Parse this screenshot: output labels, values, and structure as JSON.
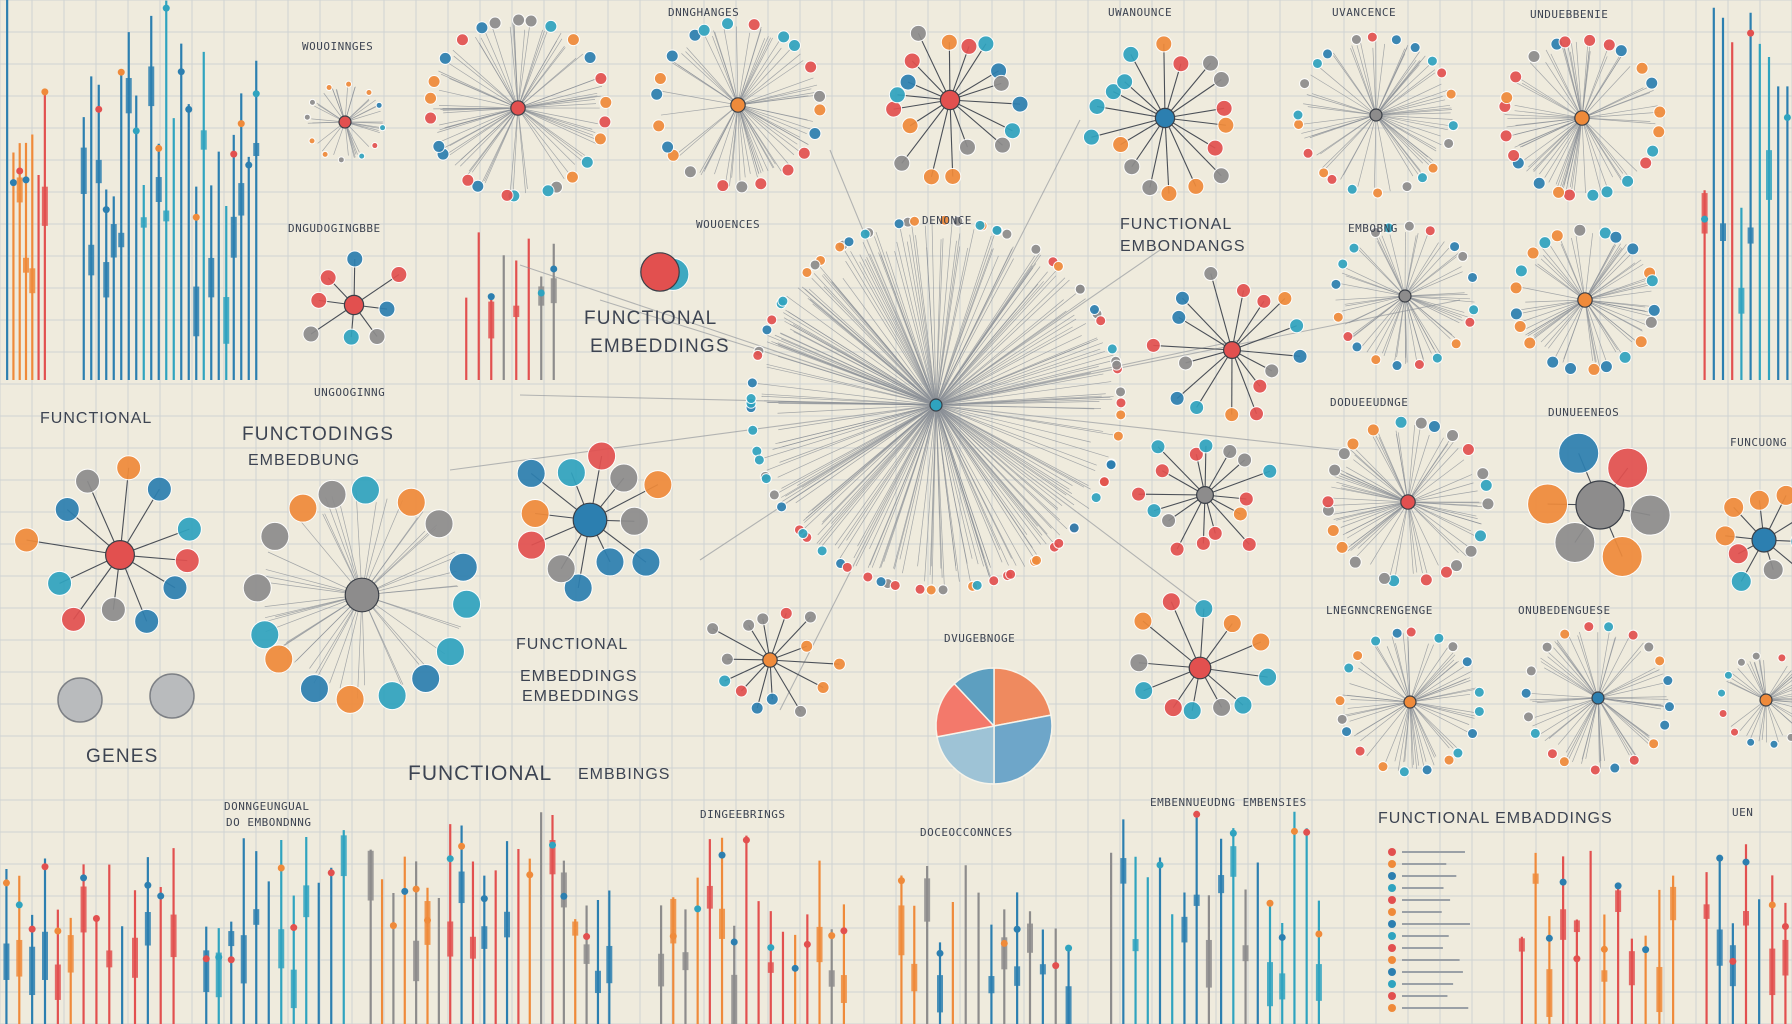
{
  "colors": {
    "background": "#efebdd",
    "grid": "#cfd3d2",
    "red": "#e2504f",
    "orange": "#ef8a3a",
    "blue": "#2c7fb0",
    "teal": "#2fa3bf",
    "grey": "#8d8c8c",
    "spoke": "#8a8f96"
  },
  "labels": {
    "top_1": "DNNGHANGES",
    "top_2": "UWANOUNCE",
    "top_3": "UVANCENCE",
    "top_4": "UNDUEBBENIE",
    "left_small_1": "WOUOINNGES",
    "left_small_2": "DNGUDOGINGBBE",
    "left_small_3": "UNGOOGINNG",
    "mid_small_1": "WOUOENCES",
    "mid_small_2": "DENONCE",
    "center_functional": "FUNCTIONAL",
    "center_embeddings": "EMBEDDINGS",
    "top_right_functional": "FUNCTIONAL",
    "top_right_embeddings": "EMBONDANGS",
    "right_small_1": "EMBOBNG",
    "right_small_2": "DODUEEUDNGE",
    "right_small_3": "DUNUEENEOS",
    "right_small_4": "FUNCUONG",
    "left_functional": "FUNCTIONAL",
    "left_funcodings_1": "FUNCTODINGS",
    "left_funcodings_2": "EMBEDBUNG",
    "genes": "GENES",
    "mid_functional": "FUNCTIONAL",
    "mid_embeddings_1": "EMBEDDINGS",
    "mid_embeddings_2": "EMBEDDINGS",
    "pie_title": "DVUGEBNOGE",
    "bottom_functional": "FUNCTIONAL",
    "bottom_embbings": "EMBBINGS",
    "bottom_small_1": "DONNGEUNGUAL",
    "bottom_small_2": "DO EMBONDNNG",
    "bottom_small_3": "DINGEEBRINGS",
    "bottom_small_4": "DOCEOCCONNCES",
    "bottom_small_5": "EMBENNUEUDNG EMBENSIES",
    "bottom_right_functional": "FUNCTIONAL EMBADDINGS",
    "right_small_5": "LNEGNNCRENGENGE",
    "right_small_6": "ONUBEDENGUESE",
    "right_small_7": "UEN"
  }
}
